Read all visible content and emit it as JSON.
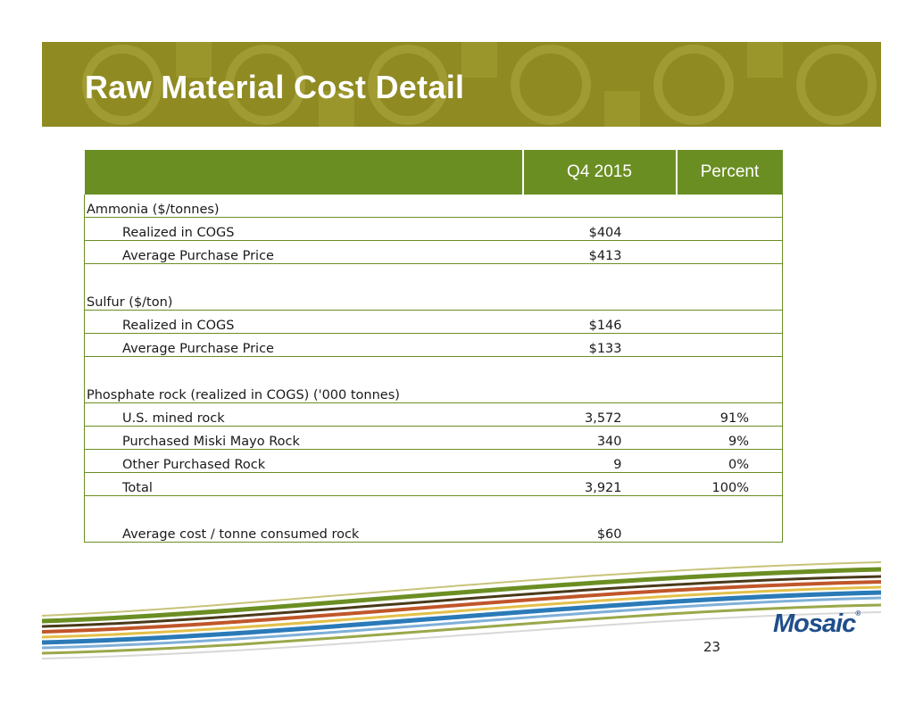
{
  "title": "Raw Material Cost Detail",
  "table": {
    "headers": [
      "",
      "Q4 2015",
      "Percent"
    ],
    "rows": [
      {
        "label": "Ammonia ($/tonnes)",
        "value": "",
        "percent": ""
      },
      {
        "label": "Realized in COGS",
        "value": "$404",
        "percent": ""
      },
      {
        "label": "Average Purchase Price",
        "value": "$413",
        "percent": ""
      },
      {
        "label": "Sulfur ($/ton)",
        "value": "",
        "percent": ""
      },
      {
        "label": "Realized in COGS",
        "value": "$146",
        "percent": ""
      },
      {
        "label": "Average Purchase Price",
        "value": "$133",
        "percent": ""
      },
      {
        "label": "Phosphate rock (realized in COGS) ('000 tonnes)",
        "value": "",
        "percent": ""
      },
      {
        "label": "U.S. mined rock",
        "value": "3,572",
        "percent": "91%"
      },
      {
        "label": "Purchased Miski Mayo Rock",
        "value": "340",
        "percent": "9%"
      },
      {
        "label": "Other Purchased Rock",
        "value": "9",
        "percent": "0%"
      },
      {
        "label": "Total",
        "value": "3,921",
        "percent": "100%"
      },
      {
        "label": "Average cost / tonne consumed rock",
        "value": "$60",
        "percent": ""
      }
    ]
  },
  "footer": {
    "page_number": "23",
    "logo_text": "Mosaic",
    "logo_mark": "®"
  },
  "colors": {
    "banner": "#8f8a22",
    "header_green": "#6b8e23",
    "logo_blue": "#1f4e8a"
  }
}
